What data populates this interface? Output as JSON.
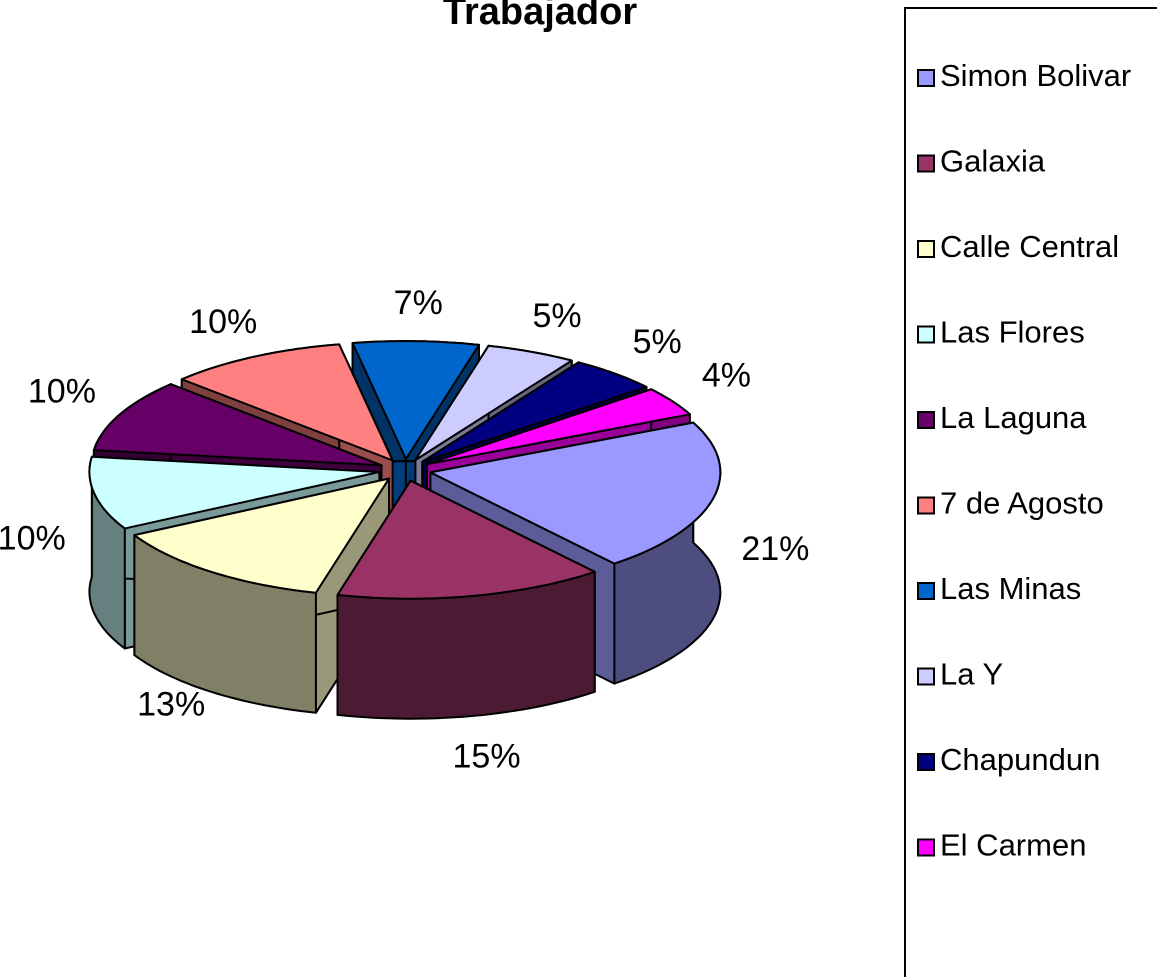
{
  "chart_data": {
    "type": "pie3d",
    "title": "Trabajador",
    "categories": [
      "Simon Bolivar",
      "Galaxia",
      "Calle Central",
      "Las Flores",
      "La Laguna",
      "7 de Agosto",
      "Las Minas",
      "La Y",
      "Chapundun",
      "El Carmen"
    ],
    "values": [
      21,
      15,
      13,
      10,
      10,
      10,
      7,
      5,
      5,
      4
    ],
    "value_labels": [
      "21%",
      "15%",
      "13%",
      "10%",
      "10%",
      "10%",
      "7%",
      "5%",
      "5%",
      "4%"
    ],
    "colors": [
      "#9999ff",
      "#993366",
      "#ffffcc",
      "#ccffff",
      "#660066",
      "#ff8080",
      "#0066cc",
      "#ccccff",
      "#000080",
      "#ff00ff"
    ],
    "legend": "right"
  }
}
